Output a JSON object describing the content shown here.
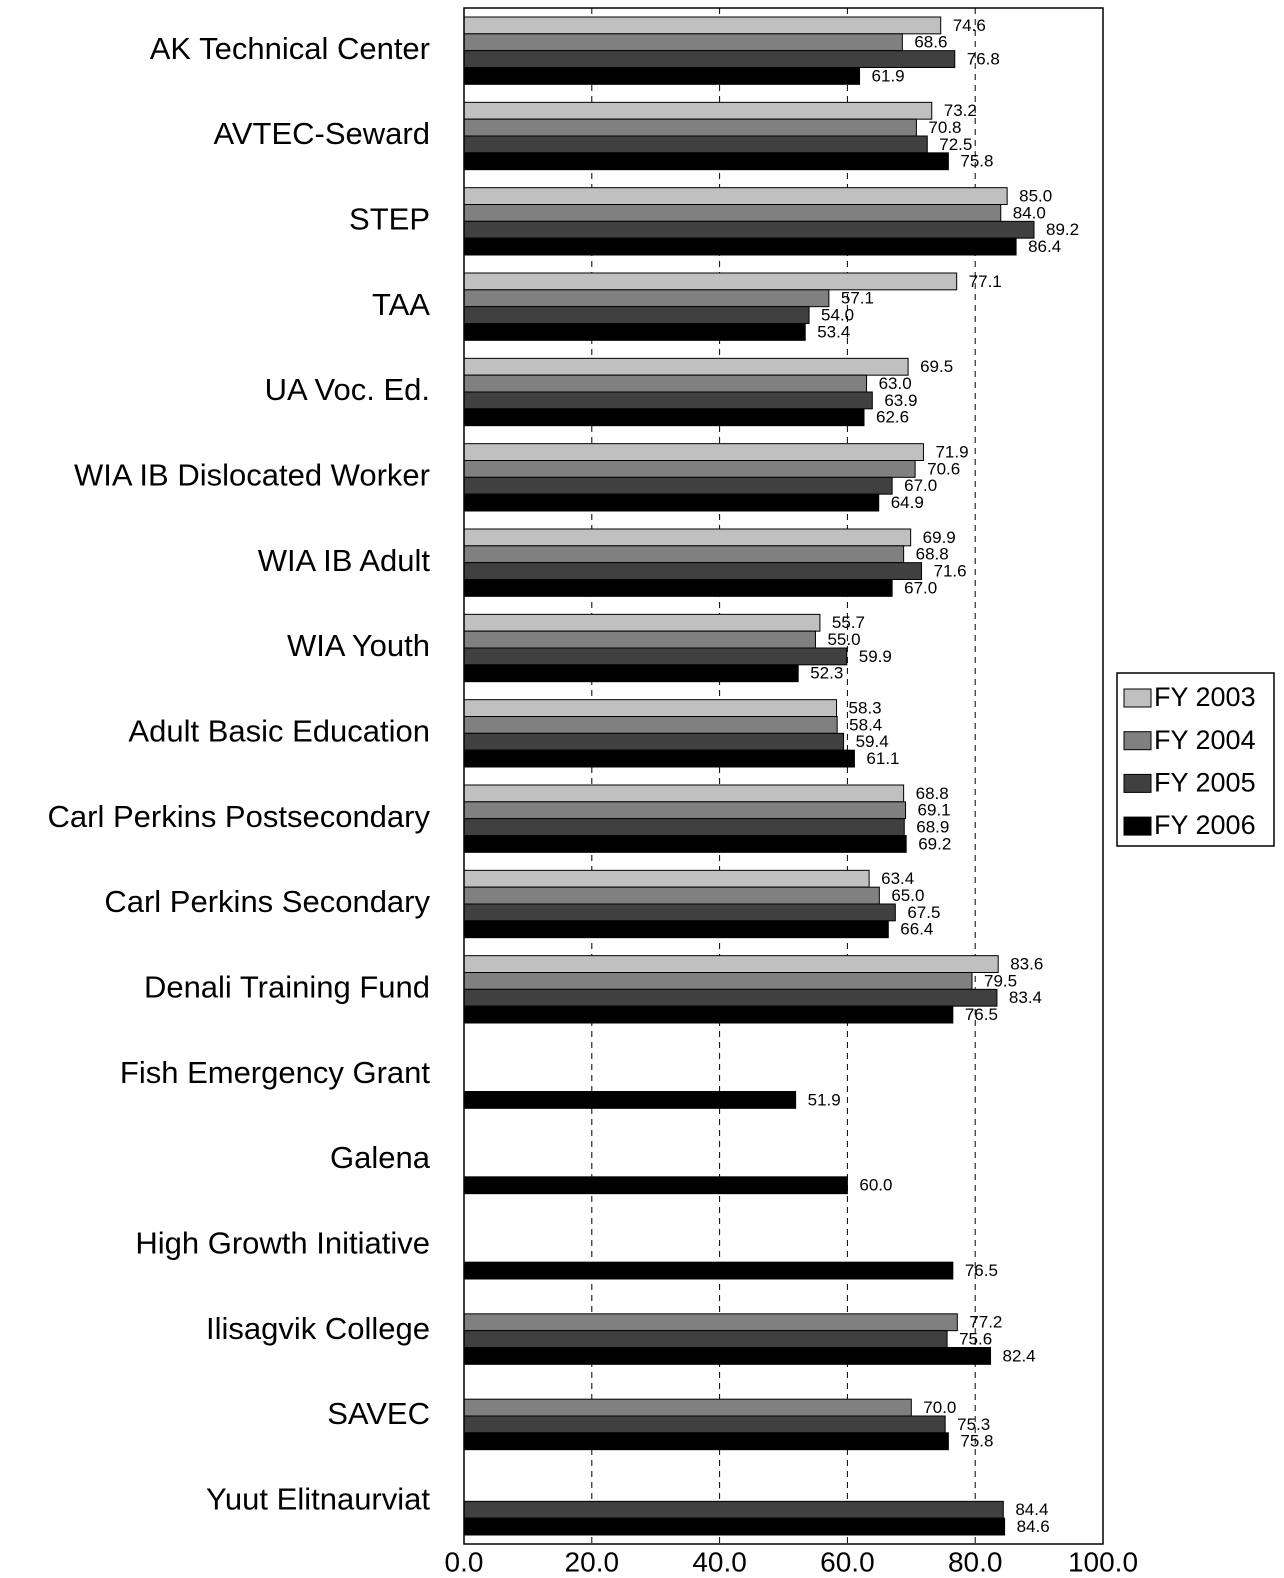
{
  "chart_data": {
    "type": "hbar",
    "categories": [
      "AK Technical Center",
      "AVTEC-Seward",
      "STEP",
      "TAA",
      "UA Voc. Ed.",
      "WIA IB Dislocated Worker",
      "WIA IB Adult",
      "WIA Youth",
      "Adult Basic Education",
      "Carl Perkins Postsecondary",
      "Carl Perkins Secondary",
      "Denali Training Fund",
      "Fish Emergency Grant",
      "Galena",
      "High Growth Initiative",
      "Ilisagvik College",
      "SAVEC",
      "Yuut Elitnaurviat"
    ],
    "series": [
      {
        "name": "FY 2003",
        "color": "#c0c0c0",
        "values": [
          74.6,
          73.2,
          85.0,
          77.1,
          69.5,
          71.9,
          69.9,
          55.7,
          58.3,
          68.8,
          63.4,
          83.6,
          null,
          null,
          null,
          null,
          null,
          null
        ],
        "value_labels": [
          "74.6",
          "73.2",
          "85.0",
          "77.1",
          "69.5",
          "71.9",
          "69.9",
          "55.7",
          "58.3",
          "68.8",
          "63.4",
          "83.6",
          null,
          null,
          null,
          null,
          null,
          null
        ]
      },
      {
        "name": "FY 2004",
        "color": "#808080",
        "values": [
          68.6,
          70.8,
          84.0,
          57.1,
          63.0,
          70.6,
          68.8,
          55.0,
          58.4,
          69.1,
          65.0,
          79.5,
          null,
          null,
          null,
          77.2,
          70.0,
          null
        ],
        "value_labels": [
          "68.6",
          "70.8",
          "84.0",
          "57.1",
          "63.0",
          "70.6",
          "68.8",
          "55.0",
          "58.4",
          "69.1",
          "65.0",
          "79.5",
          null,
          null,
          null,
          "77.2",
          "70.0",
          null
        ]
      },
      {
        "name": "FY 2005",
        "color": "#404040",
        "values": [
          76.8,
          72.5,
          89.2,
          54.0,
          63.9,
          67.0,
          71.6,
          59.9,
          59.4,
          68.9,
          67.5,
          83.4,
          null,
          null,
          null,
          75.6,
          75.3,
          84.4
        ],
        "value_labels": [
          "76.8",
          "72.5",
          "89.2",
          "54.0",
          "63.9",
          "67.0",
          "71.6",
          "59.9",
          "59.4",
          "68.9",
          "67.5",
          "83.4",
          null,
          null,
          null,
          "75.6",
          "75.3",
          "84.4"
        ]
      },
      {
        "name": "FY 2006",
        "color": "#000000",
        "values": [
          61.9,
          75.8,
          86.4,
          53.4,
          62.6,
          64.9,
          67.0,
          52.3,
          61.1,
          69.2,
          66.4,
          76.5,
          51.9,
          60.0,
          76.5,
          82.4,
          75.8,
          84.6
        ],
        "value_labels": [
          "61.9",
          "75.8",
          "86.4",
          "53.4",
          "62.6",
          "64.9",
          "67.0",
          "52.3",
          "61.1",
          "69.2",
          "66.4",
          "76.5",
          "51.9",
          "60.0",
          "76.5",
          "82.4",
          "75.8",
          "84.6"
        ]
      }
    ],
    "xlim": [
      0,
      100
    ],
    "xticks": [
      {
        "value": 0,
        "label": "0.0"
      },
      {
        "value": 20,
        "label": "20.0"
      },
      {
        "value": 40,
        "label": "40.0"
      },
      {
        "value": 60,
        "label": "60.0"
      },
      {
        "value": 80,
        "label": "80.0"
      },
      {
        "value": 100,
        "label": "100.0"
      }
    ],
    "grid": true,
    "legend": "right"
  }
}
